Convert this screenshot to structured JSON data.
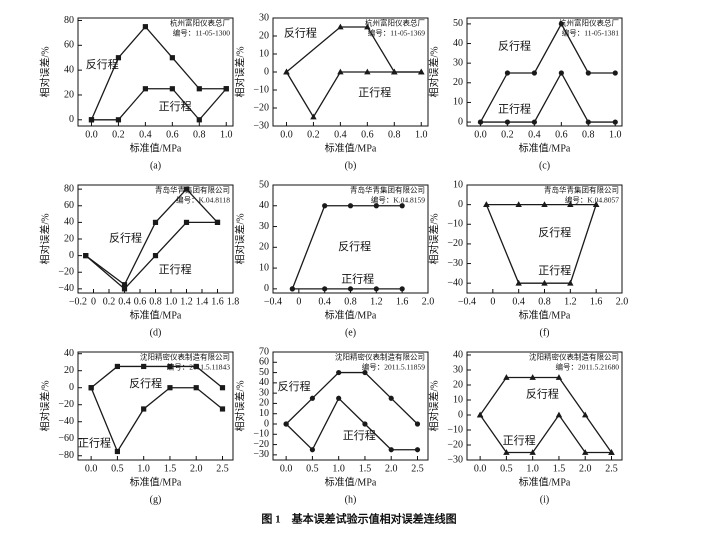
{
  "chart_data": [
    {
      "type": "line",
      "panel": "(a)",
      "xlabel": "标准值/MPa",
      "ylabel": "相对误差/%",
      "marker": "square",
      "annotations": [
        "杭州富阳仪表总厂",
        "编号：11-05-1300"
      ],
      "xlim": [
        -0.1,
        1.05
      ],
      "ylim": [
        -5,
        82
      ],
      "xticks": [
        {
          "value": 0,
          "label": "0.0"
        },
        0.2,
        0.4,
        0.6,
        0.8,
        {
          "value": 1,
          "label": "1.0"
        }
      ],
      "yticks": [
        0,
        20,
        40,
        60,
        80
      ],
      "series": [
        {
          "name": "反行程",
          "color": "#1a1a1a",
          "x": [
            0,
            0.2,
            0.4,
            0.6,
            0.8,
            1.0
          ],
          "values": [
            0,
            50,
            75,
            50,
            25,
            25
          ]
        },
        {
          "name": "正行程",
          "color": "#1a1a1a",
          "x": [
            0,
            0.2,
            0.4,
            0.6,
            0.8,
            1.0
          ],
          "values": [
            0,
            0,
            25,
            25,
            0,
            25
          ]
        }
      ]
    },
    {
      "type": "line",
      "panel": "(b)",
      "xlabel": "标准值/MPa",
      "ylabel": "相对误差/%",
      "marker": "triangle",
      "annotations": [
        "杭州富阳仪表总厂",
        "编号：11-05-1369"
      ],
      "xlim": [
        -0.1,
        1.05
      ],
      "ylim": [
        -30,
        30
      ],
      "xticks": [
        {
          "value": 0,
          "label": "0.0"
        },
        0.2,
        0.4,
        0.6,
        0.8,
        {
          "value": 1,
          "label": "1.0"
        }
      ],
      "yticks": [
        {
          "value": -30,
          "label": "−30"
        },
        {
          "value": -20,
          "label": "−20"
        },
        {
          "value": -10,
          "label": "−10"
        },
        0,
        10,
        20,
        30
      ],
      "series": [
        {
          "name": "反行程",
          "color": "#1a1a1a",
          "x": [
            0,
            0.4,
            0.6,
            0.8,
            1.0
          ],
          "values": [
            0,
            25,
            25,
            0,
            0
          ]
        },
        {
          "name": "正行程",
          "color": "#1a1a1a",
          "x": [
            0,
            0.2,
            0.4,
            0.6,
            0.8,
            1.0
          ],
          "values": [
            0,
            -25,
            0,
            0,
            0,
            0
          ]
        }
      ]
    },
    {
      "type": "line",
      "panel": "(c)",
      "xlabel": "标准值/MPa",
      "ylabel": "相对误差/%",
      "marker": "circle",
      "annotations": [
        "杭州富阳仪表总厂",
        "编号：11-05-1381"
      ],
      "xlim": [
        -0.1,
        1.05
      ],
      "ylim": [
        -2,
        53
      ],
      "xticks": [
        {
          "value": 0,
          "label": "0.0"
        },
        0.2,
        0.4,
        0.6,
        0.8,
        {
          "value": 1,
          "label": "1.0"
        }
      ],
      "yticks": [
        0,
        10,
        20,
        30,
        40,
        50
      ],
      "series": [
        {
          "name": "反行程",
          "color": "#1a1a1a",
          "x": [
            0,
            0.2,
            0.4,
            0.6,
            0.8,
            1.0
          ],
          "values": [
            0,
            25,
            25,
            50,
            25,
            25
          ]
        },
        {
          "name": "正行程",
          "color": "#1a1a1a",
          "x": [
            0,
            0.2,
            0.4,
            0.6,
            0.8,
            1.0
          ],
          "values": [
            0,
            0,
            0,
            25,
            0,
            0
          ]
        }
      ]
    },
    {
      "type": "line",
      "panel": "(d)",
      "xlabel": "标准值/MPa",
      "ylabel": "相对误差/%",
      "marker": "square",
      "annotations": [
        "青岛华青集团有限公司",
        "编号：K.04.8118"
      ],
      "xlim": [
        -0.2,
        1.8
      ],
      "ylim": [
        -45,
        85
      ],
      "xticks": [
        {
          "value": -0.2,
          "label": "−0.2"
        },
        0,
        0.2,
        0.4,
        0.6,
        0.8,
        {
          "value": 1,
          "label": "1.0"
        },
        1.2,
        1.4,
        1.6,
        1.8
      ],
      "yticks": [
        {
          "value": -40,
          "label": "−40"
        },
        {
          "value": -20,
          "label": "−20"
        },
        0,
        20,
        40,
        60,
        80
      ],
      "series": [
        {
          "name": "反行程",
          "color": "#1a1a1a",
          "x": [
            -0.1,
            0.4,
            0.8,
            1.2,
            1.6
          ],
          "values": [
            0,
            -35,
            40,
            80,
            40
          ]
        },
        {
          "name": "正行程",
          "color": "#1a1a1a",
          "x": [
            -0.1,
            0.4,
            0.8,
            1.2,
            1.6
          ],
          "values": [
            0,
            -40,
            0,
            40,
            40
          ]
        }
      ]
    },
    {
      "type": "line",
      "panel": "(e)",
      "xlabel": "标准值/MPa",
      "ylabel": "相对误差/%",
      "marker": "circle",
      "annotations": [
        "青岛华青集团有限公司",
        "编号：K.04.8159"
      ],
      "xlim": [
        -0.4,
        2.0
      ],
      "ylim": [
        -2,
        50
      ],
      "xticks": [
        {
          "value": -0.4,
          "label": "−0.4"
        },
        0,
        0.4,
        0.8,
        1.2,
        1.6,
        {
          "value": 2,
          "label": "2.0"
        }
      ],
      "yticks": [
        0,
        10,
        20,
        30,
        40,
        50
      ],
      "series": [
        {
          "name": "反行程",
          "color": "#1a1a1a",
          "x": [
            -0.1,
            0.4,
            0.8,
            1.2,
            1.6
          ],
          "values": [
            0,
            40,
            40,
            40,
            40
          ]
        },
        {
          "name": "正行程",
          "color": "#1a1a1a",
          "x": [
            -0.1,
            0.4,
            0.8,
            1.2,
            1.6
          ],
          "values": [
            0,
            0,
            0,
            0,
            0
          ]
        }
      ]
    },
    {
      "type": "line",
      "panel": "(f)",
      "xlabel": "标准值/MPa",
      "ylabel": "相对误差/%",
      "marker": "triangle",
      "annotations": [
        "青岛华青集团有限公司",
        "编号：K.04.8057"
      ],
      "xlim": [
        -0.4,
        2.0
      ],
      "ylim": [
        -45,
        10
      ],
      "xticks": [
        {
          "value": -0.4,
          "label": "−0.4"
        },
        0,
        0.4,
        0.8,
        1.2,
        1.6,
        {
          "value": 2,
          "label": "2.0"
        }
      ],
      "yticks": [
        {
          "value": -40,
          "label": "−40"
        },
        {
          "value": -30,
          "label": "−30"
        },
        {
          "value": -20,
          "label": "−20"
        },
        {
          "value": -10,
          "label": "−10"
        },
        0,
        10
      ],
      "series": [
        {
          "name": "反行程",
          "color": "#1a1a1a",
          "x": [
            -0.1,
            0.4,
            0.8,
            1.2,
            1.6
          ],
          "values": [
            0,
            0,
            0,
            0,
            0
          ]
        },
        {
          "name": "正行程",
          "color": "#1a1a1a",
          "x": [
            -0.1,
            0.4,
            0.8,
            1.2,
            1.6
          ],
          "values": [
            0,
            -40,
            -40,
            -40,
            0
          ]
        }
      ]
    },
    {
      "type": "line",
      "panel": "(g)",
      "xlabel": "标准值/MPa",
      "ylabel": "相对误差/%",
      "marker": "square",
      "annotations": [
        "沈阳精密仪表制造有限公司",
        "编号：2011.5.11843"
      ],
      "xlim": [
        -0.25,
        2.7
      ],
      "ylim": [
        -85,
        42
      ],
      "xticks": [
        {
          "value": 0,
          "label": "0.0"
        },
        0.5,
        {
          "value": 1,
          "label": "1.0"
        },
        1.5,
        {
          "value": 2,
          "label": "2.0"
        },
        2.5
      ],
      "yticks": [
        {
          "value": -80,
          "label": "−80"
        },
        {
          "value": -60,
          "label": "−60"
        },
        {
          "value": -40,
          "label": "−40"
        },
        {
          "value": -20,
          "label": "−20"
        },
        0,
        20,
        40
      ],
      "series": [
        {
          "name": "反行程",
          "color": "#1a1a1a",
          "x": [
            0,
            0.5,
            1.0,
            1.5,
            2.0,
            2.5
          ],
          "values": [
            0,
            25,
            25,
            25,
            25,
            0
          ]
        },
        {
          "name": "正行程",
          "color": "#1a1a1a",
          "x": [
            0,
            0.5,
            1.0,
            1.5,
            2.0,
            2.5
          ],
          "values": [
            0,
            -75,
            -25,
            0,
            0,
            -25
          ]
        }
      ]
    },
    {
      "type": "line",
      "panel": "(h)",
      "xlabel": "标准值/MPa",
      "ylabel": "相对误差/%",
      "marker": "circle",
      "annotations": [
        "沈阳精密仪表制造有限公司",
        "编号：2011.5.11859"
      ],
      "xlim": [
        -0.25,
        2.7
      ],
      "ylim": [
        -35,
        70
      ],
      "xticks": [
        {
          "value": 0,
          "label": "0.0"
        },
        0.5,
        {
          "value": 1,
          "label": "1.0"
        },
        1.5,
        {
          "value": 2,
          "label": "2.0"
        },
        2.5
      ],
      "yticks": [
        {
          "value": -30,
          "label": "−30"
        },
        {
          "value": -20,
          "label": "−20"
        },
        {
          "value": -10,
          "label": "−10"
        },
        0,
        10,
        20,
        30,
        40,
        50,
        60,
        70
      ],
      "series": [
        {
          "name": "反行程",
          "color": "#1a1a1a",
          "x": [
            0,
            0.5,
            1.0,
            1.5,
            2.0,
            2.5
          ],
          "values": [
            0,
            25,
            50,
            50,
            25,
            0
          ]
        },
        {
          "name": "正行程",
          "color": "#1a1a1a",
          "x": [
            0,
            0.5,
            1.0,
            1.5,
            2.0,
            2.5
          ],
          "values": [
            0,
            -25,
            25,
            0,
            -25,
            -25
          ]
        }
      ]
    },
    {
      "type": "line",
      "panel": "(i)",
      "xlabel": "标准值/MPa",
      "ylabel": "相对误差/%",
      "marker": "triangle",
      "annotations": [
        "沈阳精密仪表制造有限公司",
        "编号：2011.5.21680"
      ],
      "xlim": [
        -0.25,
        2.7
      ],
      "ylim": [
        -30,
        42
      ],
      "xticks": [
        {
          "value": 0,
          "label": "0.0"
        },
        0.5,
        {
          "value": 1,
          "label": "1.0"
        },
        1.5,
        {
          "value": 2,
          "label": "2.0"
        },
        2.5
      ],
      "yticks": [
        {
          "value": -30,
          "label": "−30"
        },
        {
          "value": -20,
          "label": "−20"
        },
        {
          "value": -10,
          "label": "−10"
        },
        0,
        10,
        20,
        30,
        40
      ],
      "series": [
        {
          "name": "反行程",
          "color": "#1a1a1a",
          "x": [
            0,
            0.5,
            1.0,
            1.5,
            2.0,
            2.5
          ],
          "values": [
            0,
            25,
            25,
            25,
            0,
            -25
          ]
        },
        {
          "name": "正行程",
          "color": "#1a1a1a",
          "x": [
            0,
            0.5,
            1.0,
            1.5,
            2.0,
            2.5
          ],
          "values": [
            0,
            -25,
            -25,
            0,
            -25,
            -25
          ]
        }
      ]
    }
  ],
  "caption": "图 1　基本误差试验示值相对误差连线图"
}
